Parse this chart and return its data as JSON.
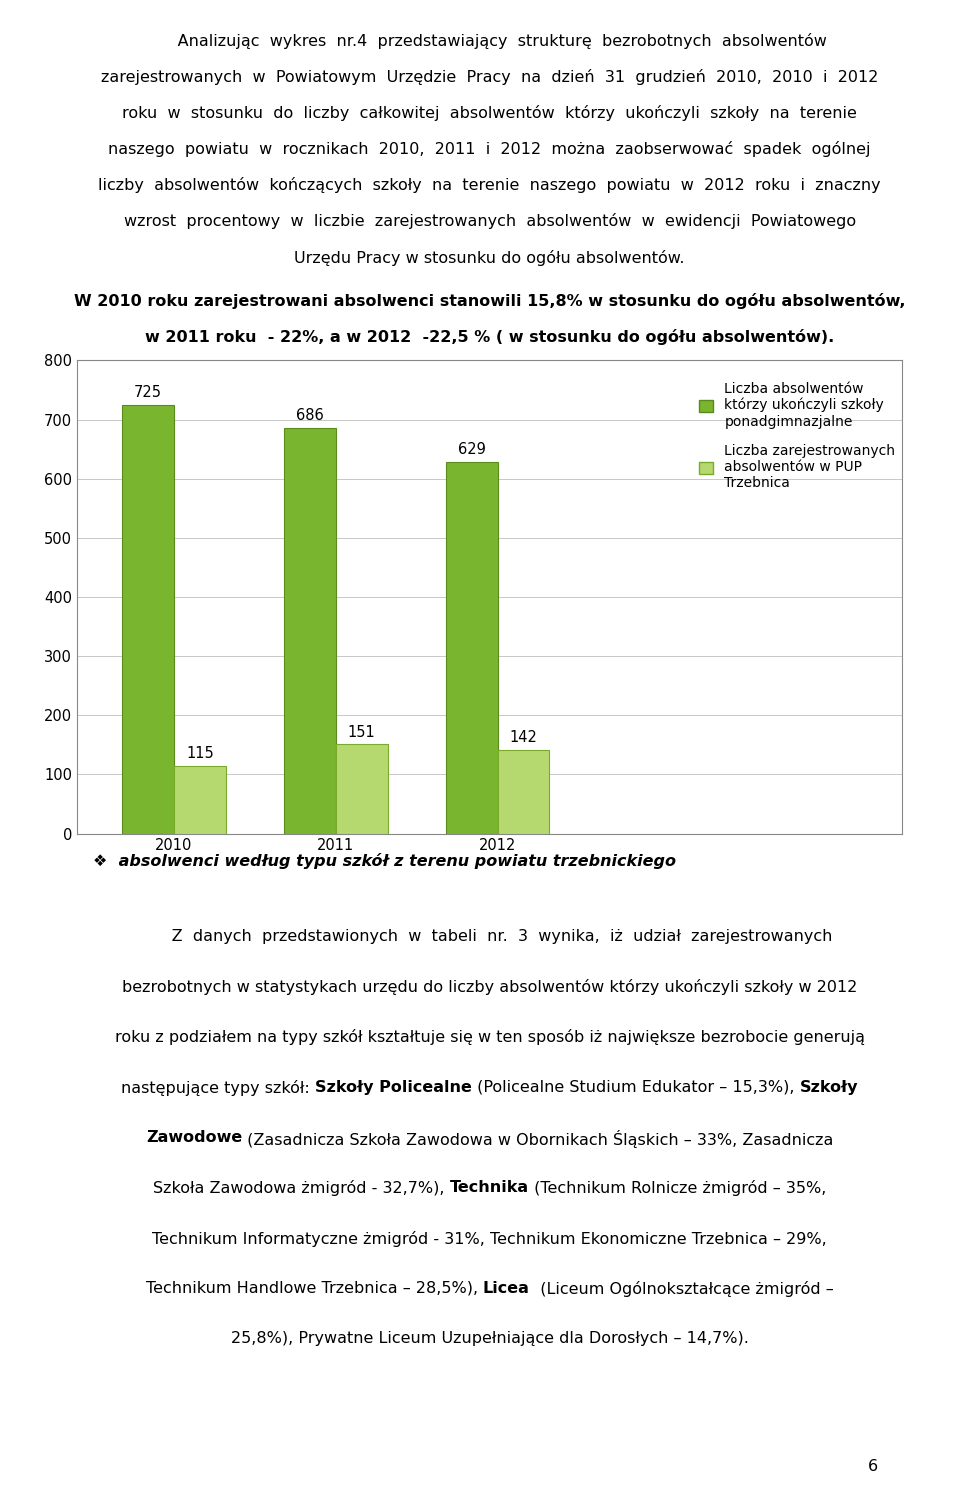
{
  "years": [
    "2010",
    "2011",
    "2012"
  ],
  "series1_values": [
    725,
    686,
    629
  ],
  "series2_values": [
    115,
    151,
    142
  ],
  "series1_color": "#7ab530",
  "series2_color": "#b5d96e",
  "series1_edge": "#5a8a1a",
  "series2_edge": "#7aaa2a",
  "legend1_line1": "Liczba absolwentów",
  "legend1_line2": "którzy ukończyli szkoły",
  "legend1_line3": "ponadgimnazjalne",
  "legend2_line1": "Liczba zarejestrowanych",
  "legend2_line2": "absolwentów w PUP",
  "legend2_line3": "Trzebnica",
  "ylim": [
    0,
    800
  ],
  "yticks": [
    0,
    100,
    200,
    300,
    400,
    500,
    600,
    700,
    800
  ],
  "bar_width": 0.32,
  "background_color": "#ffffff",
  "grid_color": "#c8c8c8",
  "text_color": "#000000",
  "font_size_body": 11.5,
  "font_size_caption": 10.0,
  "font_size_axis": 10.5,
  "font_size_bar_label": 10.5,
  "font_size_legend": 10.0,
  "font_size_bold_line": 11.5,
  "page_number": "6"
}
